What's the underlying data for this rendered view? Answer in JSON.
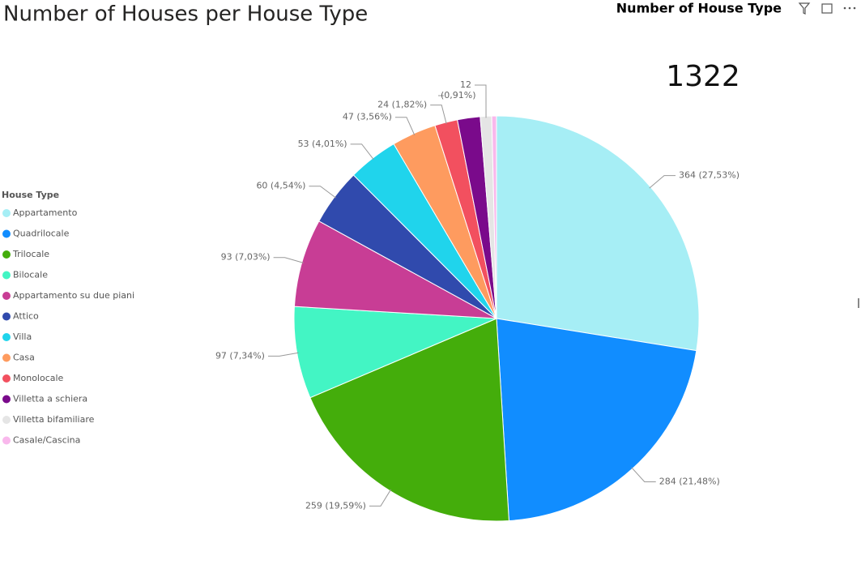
{
  "chart_data": {
    "type": "pie",
    "title": "Number of Houses per  House Type",
    "card_title": "Number of House Type",
    "card_value": 1322,
    "legend_title": "House Type",
    "legend": "left",
    "categories": [
      "Appartamento",
      "Quadrilocale",
      "Trilocale",
      "Bilocale",
      "Appartamento su due piani",
      "Attico",
      "Villa",
      "Casa",
      "Monolocale",
      "Villetta a schiera",
      "Villetta bifamiliare",
      "Casale/Cascina"
    ],
    "values": [
      364,
      284,
      259,
      97,
      93,
      60,
      53,
      47,
      24,
      24,
      12,
      5
    ],
    "value_labels": [
      "364 (27,53%)",
      "284 (21,48%)",
      "259 (19,59%)",
      "97 (7,34%)",
      "93 (7,03%)",
      "60 (4,54%)",
      "53 (4,01%)",
      "47 (3,56%)",
      "24 (1,82%)",
      null,
      "12",
      null
    ],
    "annotations": [
      "(0,91%)"
    ],
    "colors": [
      "#a6eef5",
      "#118dff",
      "#44ad0b",
      "#43f5c4",
      "#c83d95",
      "#304aad",
      "#20d4ec",
      "#fe9b5f",
      "#f2505f",
      "#7a0a8b",
      "#e5e5e5",
      "#f9b8ec"
    ]
  }
}
